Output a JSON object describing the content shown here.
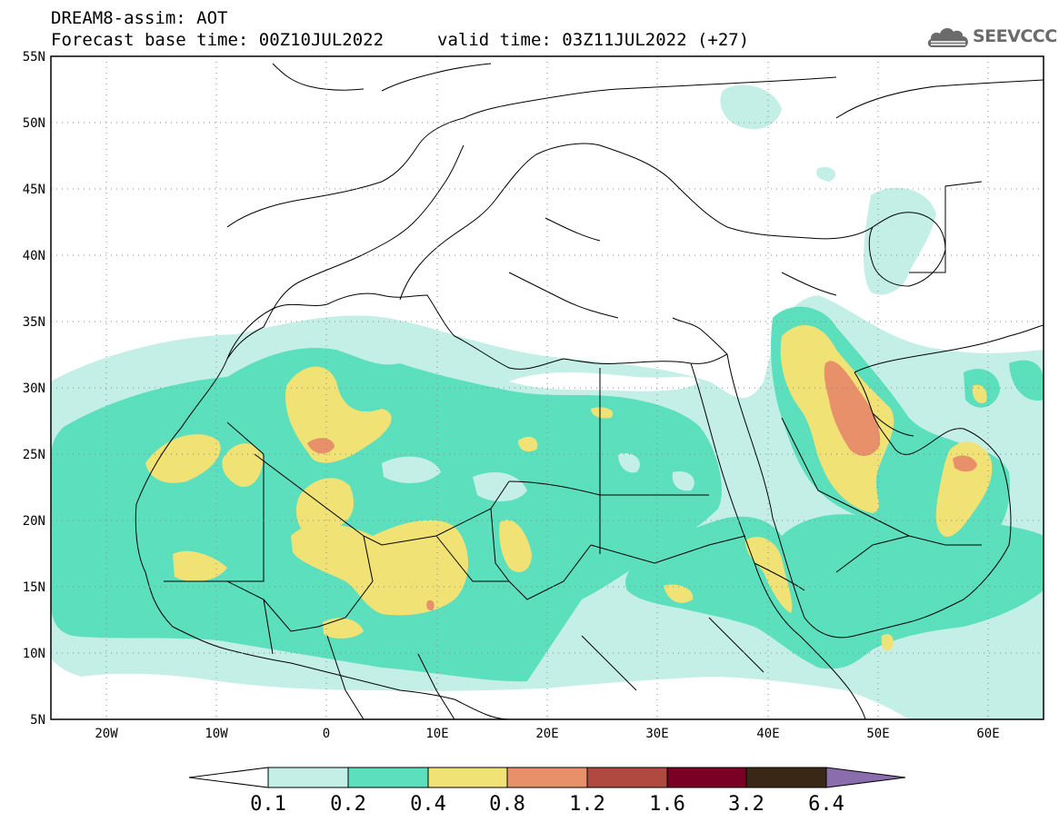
{
  "header": {
    "title": "DREAM8-assim: AOT",
    "forecast_base": "Forecast base time: 00Z10JUL2022",
    "valid_time": "valid time: 03Z11JUL2022 (+27)"
  },
  "logo": {
    "text": "SEEVCCC",
    "icon": "cloud-icon"
  },
  "map": {
    "projection": "lat-lon",
    "lon_range": [
      -25,
      65
    ],
    "lat_range": [
      5,
      55
    ],
    "lat_labels": [
      "55N",
      "50N",
      "45N",
      "40N",
      "35N",
      "30N",
      "25N",
      "20N",
      "15N",
      "10N",
      "5N"
    ],
    "lon_labels": [
      "20W",
      "10W",
      "0",
      "10E",
      "20E",
      "30E",
      "40E",
      "50E",
      "60E"
    ],
    "grid": "dotted"
  },
  "colorbar": {
    "labels": [
      "0.1",
      "0.2",
      "0.4",
      "0.8",
      "1.2",
      "1.6",
      "3.2",
      "6.4"
    ],
    "colors": [
      "#ffffff",
      "#c4efe7",
      "#5cdfbd",
      "#f1e276",
      "#e8906a",
      "#b04a40",
      "#7a0026",
      "#3a2715",
      "#8b6cac"
    ]
  }
}
